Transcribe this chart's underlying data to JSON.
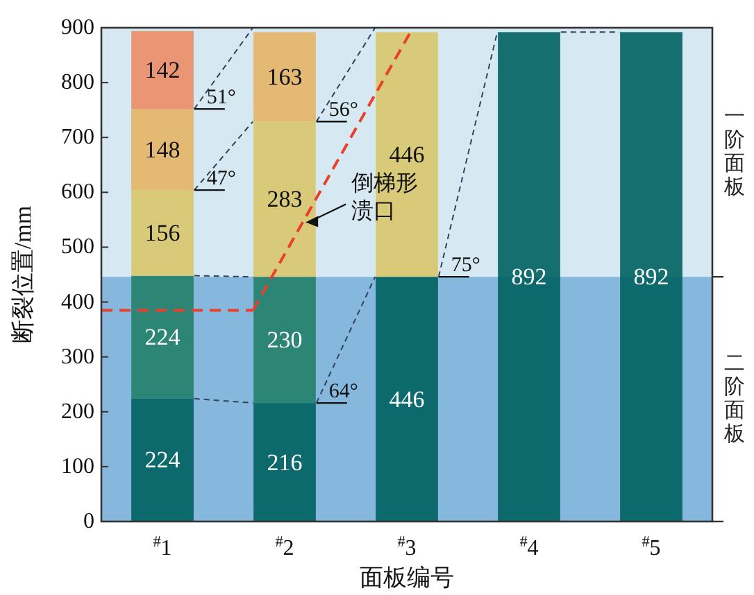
{
  "chart_data": {
    "type": "bar",
    "stacked": true,
    "categories": [
      "$^{#}$1",
      "$^{#}$2",
      "$^{#}$3",
      "$^{#}$4",
      "$^{#}$5"
    ],
    "xlabel": "面板编号",
    "ylabel": "断裂位置/mm",
    "ylim": [
      0,
      900
    ],
    "yticks": [
      0,
      100,
      200,
      300,
      400,
      500,
      600,
      700,
      800,
      900
    ],
    "data_labels": true,
    "bands": [
      {
        "axis": "y",
        "from": 446,
        "to": 900,
        "label": "一阶面板",
        "color": "#d6e8f1"
      },
      {
        "axis": "y",
        "from": 0,
        "to": 446,
        "label": "二阶面板",
        "color": "#85b8dc"
      }
    ],
    "series": [
      {
        "colors": [
          "#00625f",
          "#00625f",
          "#00625f",
          "#00625f",
          "#00625f"
        ],
        "values": [
          224,
          216,
          446,
          892,
          892
        ]
      },
      {
        "colors": [
          "#237f6a",
          "#237f6a",
          "#d8c66a",
          null,
          null
        ],
        "values": [
          224,
          230,
          446,
          null,
          null
        ]
      },
      {
        "colors": [
          "#d8c66a",
          "#d8c66a",
          null,
          null,
          null
        ],
        "values": [
          156,
          283,
          null,
          null,
          null
        ]
      },
      {
        "colors": [
          "#e4b466",
          "#e4b466",
          null,
          null,
          null
        ],
        "values": [
          148,
          163,
          null,
          null,
          null
        ]
      },
      {
        "colors": [
          "#ec8d66",
          null,
          null,
          null,
          null
        ],
        "values": [
          142,
          null,
          null,
          null,
          null
        ]
      }
    ],
    "ref_lines": [
      {
        "axis": "y",
        "value": 385,
        "color": "#e8402c",
        "line_style": "dashed"
      }
    ],
    "annotations": [
      {
        "text": "51°",
        "x": "$^{#}$1",
        "y": 752
      },
      {
        "text": "47°",
        "x": "$^{#}$1",
        "y": 604
      },
      {
        "text": "56°",
        "x": "$^{#}$2",
        "y": 729
      },
      {
        "text": "64°",
        "x": "$^{#}$2",
        "y": 216
      },
      {
        "text": "75°",
        "x": "$^{#}$3",
        "y": 446
      },
      "倒梯形溃口"
    ]
  }
}
